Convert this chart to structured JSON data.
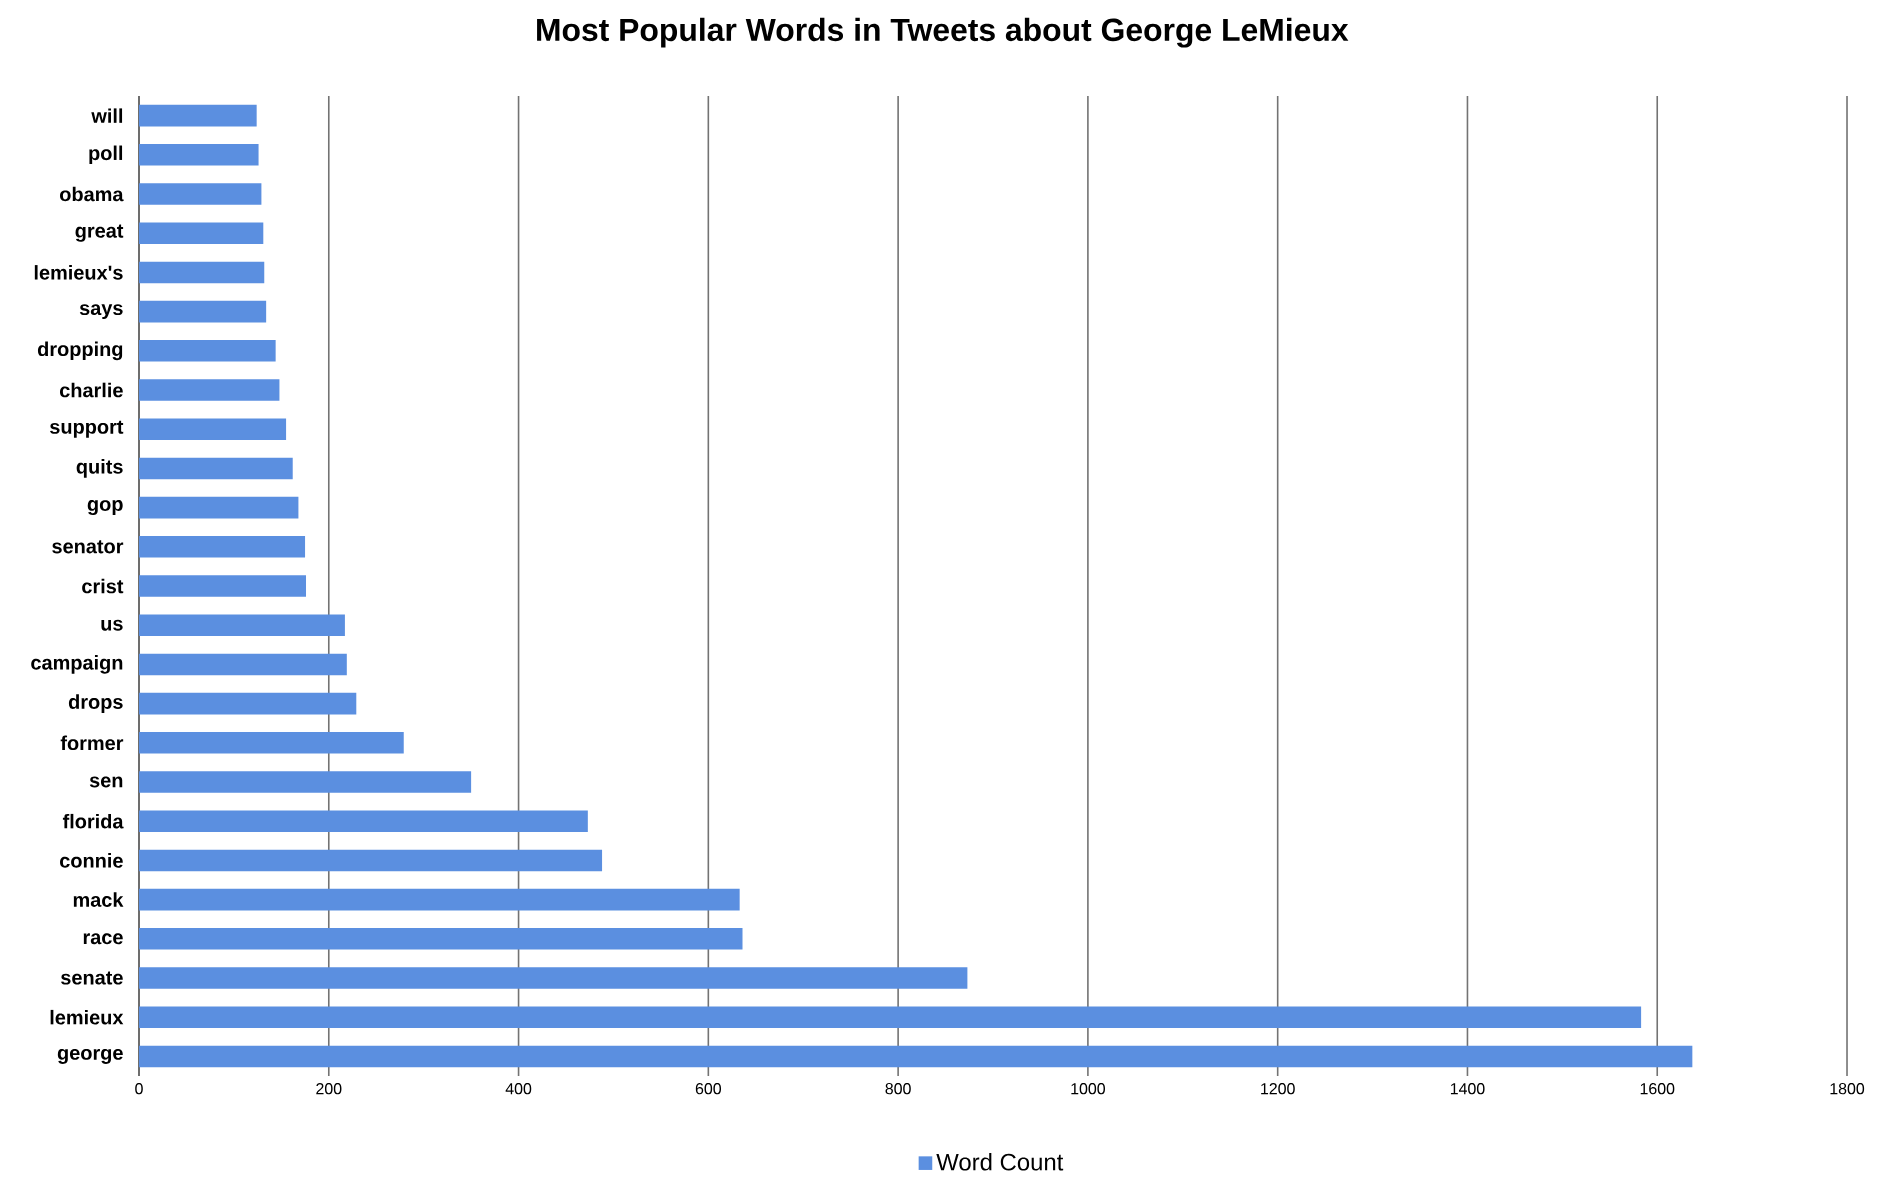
{
  "chart_data": {
    "type": "bar",
    "orientation": "horizontal",
    "title": "Most Popular Words in Tweets about George LeMieux",
    "categories": [
      "will",
      "poll",
      "obama",
      "great",
      "lemieux's",
      "says",
      "dropping",
      "charlie",
      "support",
      "quits",
      "gop",
      "senator",
      "crist",
      "us",
      "campaign",
      "drops",
      "former",
      "sen",
      "florida",
      "connie",
      "mack",
      "race",
      "senate",
      "lemieux",
      "george"
    ],
    "series": [
      {
        "name": "Word Count",
        "color": "#5b8fe0",
        "values": [
          124,
          126,
          129,
          131,
          132,
          134,
          144,
          148,
          155,
          162,
          168,
          175,
          176,
          217,
          219,
          229,
          279,
          350,
          473,
          488,
          633,
          636,
          873,
          1583,
          1637
        ]
      }
    ],
    "xlim": [
      0,
      1800
    ],
    "xticks": [
      0,
      200,
      400,
      600,
      800,
      1000,
      1200,
      1400,
      1600,
      1800
    ],
    "grid": "x",
    "legend": "bottom"
  }
}
